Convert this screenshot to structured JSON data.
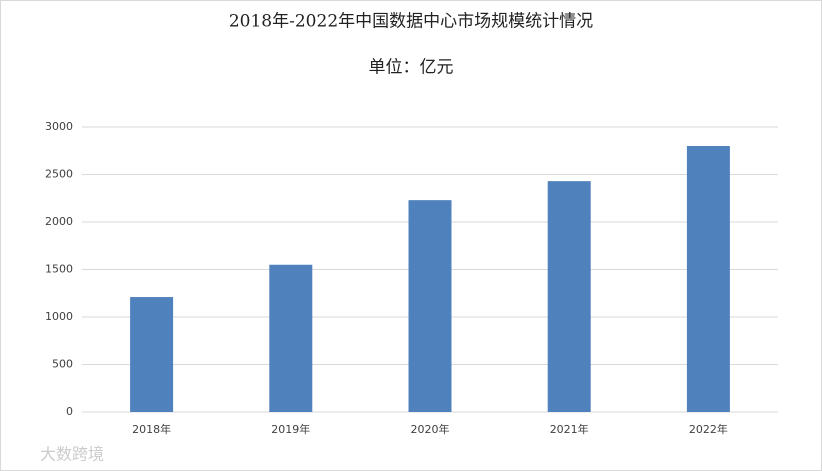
{
  "chart_data": {
    "type": "bar",
    "title": "2018年-2022年中国数据中心市场规模统计情况",
    "subtitle": "单位：亿元",
    "categories": [
      "2018年",
      "2019年",
      "2020年",
      "2021年",
      "2022年"
    ],
    "values": [
      1210,
      1550,
      2230,
      2430,
      2800
    ],
    "color": "#4f81bd",
    "ylim": [
      0,
      3000
    ],
    "yticks": [
      0,
      500,
      1000,
      1500,
      2000,
      2500,
      3000
    ],
    "grid": true
  },
  "watermark": "大数跨境"
}
